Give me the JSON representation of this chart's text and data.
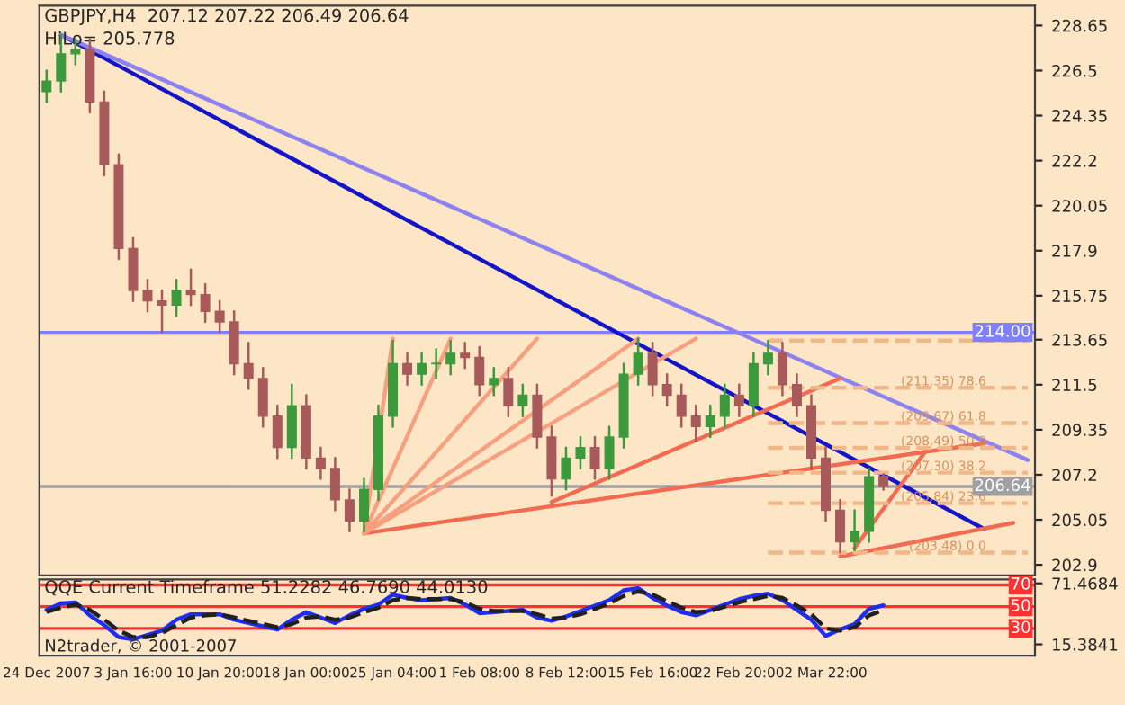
{
  "chart_data": [
    {
      "type": "candlestick",
      "title": "GBPJPY,H4  207.12 207.22 206.49 206.64",
      "subtitle": "HiLo= 205.778",
      "categories": [
        null,
        null,
        null,
        null,
        null,
        null,
        null,
        null,
        null,
        null,
        null,
        null,
        null,
        null,
        null,
        null,
        null,
        null,
        null,
        null,
        null,
        null,
        null,
        null,
        null,
        null,
        null,
        null,
        null,
        null,
        null,
        null,
        null,
        null,
        null,
        null,
        null,
        null,
        null,
        null,
        null,
        null,
        null,
        null,
        null,
        null,
        null,
        null,
        null,
        null,
        null,
        null,
        null,
        null,
        null,
        null,
        null,
        null,
        null,
        null,
        null,
        null,
        null,
        null,
        null,
        null,
        null,
        null,
        null
      ],
      "ohlc": [
        [
          225.5,
          226.5,
          225.0,
          226.0
        ],
        [
          226.0,
          228.2,
          225.5,
          227.3
        ],
        [
          227.3,
          228.0,
          226.8,
          227.5
        ],
        [
          227.5,
          228.0,
          224.5,
          225.0
        ],
        [
          225.0,
          225.5,
          221.5,
          222.0
        ],
        [
          222.0,
          222.5,
          217.5,
          218.0
        ],
        [
          218.0,
          218.5,
          215.5,
          216.0
        ],
        [
          216.0,
          216.5,
          215.0,
          215.5
        ],
        [
          215.5,
          216.0,
          214.0,
          215.3
        ],
        [
          215.3,
          216.5,
          214.8,
          216.0
        ],
        [
          216.0,
          217.0,
          215.3,
          215.8
        ],
        [
          215.8,
          216.3,
          214.5,
          215.0
        ],
        [
          215.0,
          215.5,
          214.0,
          214.5
        ],
        [
          214.5,
          215.0,
          212.0,
          212.5
        ],
        [
          212.5,
          213.5,
          211.3,
          211.8
        ],
        [
          211.8,
          212.3,
          209.5,
          210.0
        ],
        [
          210.0,
          210.5,
          208.0,
          208.5
        ],
        [
          208.5,
          211.5,
          208.0,
          210.5
        ],
        [
          210.5,
          211.0,
          207.5,
          208.0
        ],
        [
          208.0,
          208.5,
          207.0,
          207.5
        ],
        [
          207.5,
          208.0,
          205.5,
          206.0
        ],
        [
          206.0,
          206.5,
          204.5,
          205.0
        ],
        [
          205.0,
          207.0,
          204.5,
          206.5
        ],
        [
          206.5,
          210.5,
          206.0,
          210.0
        ],
        [
          210.0,
          213.6,
          209.5,
          212.5
        ],
        [
          212.5,
          213.0,
          211.5,
          212.0
        ],
        [
          212.0,
          213.0,
          211.5,
          212.5
        ],
        [
          212.5,
          213.2,
          211.8,
          212.5
        ],
        [
          212.5,
          213.6,
          212.0,
          213.0
        ],
        [
          213.0,
          213.5,
          212.3,
          212.8
        ],
        [
          212.8,
          213.3,
          211.0,
          211.5
        ],
        [
          211.5,
          212.3,
          211.0,
          211.8
        ],
        [
          211.8,
          212.3,
          210.0,
          210.5
        ],
        [
          210.5,
          211.5,
          210.0,
          211.0
        ],
        [
          211.0,
          211.5,
          208.5,
          209.0
        ],
        [
          209.0,
          209.5,
          206.2,
          207.0
        ],
        [
          207.0,
          208.5,
          206.5,
          208.0
        ],
        [
          208.0,
          209.0,
          207.5,
          208.5
        ],
        [
          208.5,
          209.0,
          207.0,
          207.5
        ],
        [
          207.5,
          209.5,
          207.0,
          209.0
        ],
        [
          209.0,
          212.5,
          208.5,
          212.0
        ],
        [
          212.0,
          213.7,
          211.5,
          213.0
        ],
        [
          213.0,
          213.5,
          211.0,
          211.5
        ],
        [
          211.5,
          212.0,
          210.5,
          211.0
        ],
        [
          211.0,
          211.5,
          209.5,
          210.0
        ],
        [
          210.0,
          210.5,
          208.8,
          209.5
        ],
        [
          209.5,
          210.5,
          209.0,
          210.0
        ],
        [
          210.0,
          211.5,
          209.5,
          211.0
        ],
        [
          211.0,
          211.5,
          210.0,
          210.5
        ],
        [
          210.5,
          213.0,
          210.0,
          212.5
        ],
        [
          212.5,
          213.6,
          212.0,
          213.0
        ],
        [
          213.0,
          213.5,
          211.0,
          211.5
        ],
        [
          211.5,
          212.0,
          210.0,
          210.5
        ],
        [
          210.5,
          211.0,
          207.5,
          208.0
        ],
        [
          208.0,
          208.5,
          205.0,
          205.5
        ],
        [
          205.5,
          206.0,
          203.5,
          204.0
        ],
        [
          204.0,
          205.5,
          203.6,
          204.5
        ],
        [
          204.5,
          207.5,
          204.0,
          207.1
        ],
        [
          207.12,
          207.22,
          206.49,
          206.64
        ],
        null,
        null,
        null,
        null,
        null,
        null,
        null,
        null,
        null,
        null
      ],
      "colors": [
        "#3c9a3c",
        "#3c9a3c",
        "#3c9a3c",
        "#a85a5a",
        "#a85a5a",
        "#a85a5a",
        "#a85a5a",
        "#a85a5a",
        "#a85a5a",
        "#3c9a3c",
        "#a85a5a",
        "#a85a5a",
        "#a85a5a",
        "#a85a5a",
        "#a85a5a",
        "#a85a5a",
        "#a85a5a",
        "#3c9a3c",
        "#a85a5a",
        "#a85a5a",
        "#a85a5a",
        "#a85a5a",
        "#3c9a3c",
        "#3c9a3c",
        "#3c9a3c",
        "#a85a5a",
        "#3c9a3c",
        "#3c9a3c",
        "#3c9a3c",
        "#a85a5a",
        "#a85a5a",
        "#3c9a3c",
        "#a85a5a",
        "#3c9a3c",
        "#a85a5a",
        "#a85a5a",
        "#3c9a3c",
        "#3c9a3c",
        "#a85a5a",
        "#3c9a3c",
        "#3c9a3c",
        "#3c9a3c",
        "#a85a5a",
        "#a85a5a",
        "#a85a5a",
        "#a85a5a",
        "#3c9a3c",
        "#3c9a3c",
        "#a85a5a",
        "#3c9a3c",
        "#3c9a3c",
        "#a85a5a",
        "#a85a5a",
        "#a85a5a",
        "#a85a5a",
        "#a85a5a",
        "#3c9a3c",
        "#3c9a3c",
        "#a85a5a",
        null,
        null,
        null,
        null,
        null,
        null,
        null,
        null,
        null,
        null
      ],
      "series": [
        {
          "type": "line",
          "color": "#1414c8",
          "values": [
            null,
            228.2,
            null,
            null,
            null,
            null,
            null,
            null,
            null,
            null,
            null,
            null,
            null,
            null,
            null,
            null,
            null,
            null,
            null,
            null,
            null,
            null,
            null,
            null,
            null,
            null,
            null,
            null,
            null,
            null,
            null,
            null,
            null,
            null,
            null,
            null,
            null,
            null,
            null,
            null,
            null,
            null,
            null,
            null,
            null,
            null,
            null,
            null,
            null,
            null,
            null,
            null,
            null,
            null,
            null,
            null,
            null,
            null,
            null,
            null,
            null,
            null,
            null,
            null,
            null,
            204.6,
            null,
            null,
            null
          ]
        },
        {
          "type": "line",
          "color": "#8c82f0",
          "values": [
            null,
            228.2,
            null,
            null,
            null,
            null,
            null,
            null,
            null,
            null,
            null,
            null,
            null,
            null,
            null,
            null,
            null,
            null,
            null,
            null,
            null,
            null,
            null,
            null,
            null,
            null,
            null,
            null,
            null,
            null,
            null,
            null,
            null,
            null,
            null,
            null,
            null,
            null,
            null,
            null,
            null,
            null,
            null,
            null,
            null,
            null,
            null,
            null,
            null,
            null,
            null,
            null,
            null,
            null,
            null,
            null,
            null,
            null,
            null,
            null,
            null,
            null,
            null,
            null,
            null,
            null,
            null,
            null,
            207.9
          ]
        },
        {
          "type": "line",
          "color": "#f26a50",
          "values": [
            null,
            null,
            null,
            null,
            null,
            null,
            null,
            null,
            null,
            null,
            null,
            null,
            null,
            null,
            null,
            null,
            null,
            null,
            null,
            null,
            null,
            null,
            204.4,
            null,
            null,
            null,
            null,
            null,
            null,
            null,
            null,
            null,
            null,
            null,
            null,
            null,
            null,
            null,
            null,
            null,
            null,
            null,
            null,
            null,
            null,
            null,
            null,
            null,
            null,
            null,
            null,
            null,
            null,
            null,
            null,
            null,
            null,
            null,
            null,
            null,
            null,
            null,
            null,
            null,
            null,
            208.7,
            null,
            null,
            null
          ]
        },
        {
          "type": "line",
          "color": "#f26a50",
          "values": [
            null,
            null,
            null,
            null,
            null,
            null,
            null,
            null,
            null,
            null,
            null,
            null,
            null,
            null,
            null,
            null,
            null,
            null,
            null,
            null,
            null,
            null,
            null,
            null,
            null,
            null,
            null,
            null,
            null,
            null,
            null,
            null,
            null,
            null,
            null,
            205.9,
            null,
            null,
            null,
            null,
            null,
            null,
            null,
            null,
            null,
            null,
            null,
            null,
            null,
            null,
            null,
            null,
            null,
            null,
            null,
            211.8,
            null,
            null,
            null,
            null,
            null,
            null,
            null,
            null,
            null,
            null,
            null,
            null,
            null
          ]
        },
        {
          "type": "line",
          "color": "#f26a50",
          "values": [
            null,
            null,
            null,
            null,
            null,
            null,
            null,
            null,
            null,
            null,
            null,
            null,
            null,
            null,
            null,
            null,
            null,
            null,
            null,
            null,
            null,
            null,
            null,
            null,
            null,
            null,
            null,
            null,
            null,
            null,
            null,
            null,
            null,
            null,
            null,
            null,
            null,
            null,
            null,
            null,
            null,
            null,
            null,
            null,
            null,
            null,
            null,
            null,
            null,
            null,
            null,
            null,
            null,
            null,
            null,
            203.3,
            null,
            null,
            null,
            null,
            null,
            null,
            null,
            null,
            null,
            null,
            null,
            204.9,
            null
          ]
        },
        {
          "type": "line",
          "color": "#f26a50",
          "values": [
            null,
            null,
            null,
            null,
            null,
            null,
            null,
            null,
            null,
            null,
            null,
            null,
            null,
            null,
            null,
            null,
            null,
            null,
            null,
            null,
            null,
            null,
            null,
            null,
            null,
            null,
            null,
            null,
            null,
            null,
            null,
            null,
            null,
            null,
            null,
            null,
            null,
            null,
            null,
            null,
            null,
            null,
            null,
            null,
            null,
            null,
            null,
            null,
            null,
            null,
            null,
            null,
            null,
            null,
            null,
            null,
            203.7,
            null,
            null,
            null,
            null,
            208.4,
            null,
            null,
            null,
            null,
            null,
            null,
            null
          ]
        },
        {
          "type": "line",
          "color": "#f7a080",
          "values": [
            null,
            null,
            null,
            null,
            null,
            null,
            null,
            null,
            null,
            null,
            null,
            null,
            null,
            null,
            null,
            null,
            null,
            null,
            null,
            null,
            null,
            null,
            204.4,
            null,
            213.7,
            null,
            null,
            null,
            null,
            null,
            null,
            null,
            null,
            null,
            null,
            null,
            null,
            null,
            null,
            null,
            null,
            null,
            null,
            null,
            null,
            null,
            null,
            null,
            null,
            null,
            null,
            null,
            null,
            null,
            null,
            null,
            null,
            null,
            null,
            null,
            null,
            null,
            null,
            null,
            null,
            null,
            null,
            null,
            null
          ]
        },
        {
          "type": "line",
          "color": "#f7a080",
          "values": [
            null,
            null,
            null,
            null,
            null,
            null,
            null,
            null,
            null,
            null,
            null,
            null,
            null,
            null,
            null,
            null,
            null,
            null,
            null,
            null,
            null,
            null,
            204.4,
            null,
            null,
            null,
            null,
            null,
            213.7,
            null,
            null,
            null,
            null,
            null,
            null,
            null,
            null,
            null,
            null,
            null,
            null,
            null,
            null,
            null,
            null,
            null,
            null,
            null,
            null,
            null,
            null,
            null,
            null,
            null,
            null,
            null,
            null,
            null,
            null,
            null,
            null,
            null,
            null,
            null,
            null,
            null,
            null,
            null,
            null
          ]
        },
        {
          "type": "line",
          "color": "#f7a080",
          "values": [
            null,
            null,
            null,
            null,
            null,
            null,
            null,
            null,
            null,
            null,
            null,
            null,
            null,
            null,
            null,
            null,
            null,
            null,
            null,
            null,
            null,
            null,
            204.4,
            null,
            null,
            null,
            null,
            null,
            null,
            null,
            null,
            null,
            null,
            null,
            213.7,
            null,
            null,
            null,
            null,
            null,
            null,
            null,
            null,
            null,
            null,
            null,
            null,
            null,
            null,
            null,
            null,
            null,
            null,
            null,
            null,
            null,
            null,
            null,
            null,
            null,
            null,
            null,
            null,
            null,
            null,
            null,
            null,
            null,
            null
          ]
        },
        {
          "type": "line",
          "color": "#f7a080",
          "values": [
            null,
            null,
            null,
            null,
            null,
            null,
            null,
            null,
            null,
            null,
            null,
            null,
            null,
            null,
            null,
            null,
            null,
            null,
            null,
            null,
            null,
            null,
            204.4,
            null,
            null,
            null,
            null,
            null,
            null,
            null,
            null,
            null,
            null,
            null,
            null,
            null,
            null,
            null,
            null,
            null,
            null,
            213.7,
            null,
            null,
            null,
            null,
            null,
            null,
            null,
            null,
            null,
            null,
            null,
            null,
            null,
            null,
            null,
            null,
            null,
            null,
            null,
            null,
            null,
            null,
            null,
            null,
            null,
            null,
            null
          ]
        },
        {
          "type": "line",
          "color": "#f7a080",
          "values": [
            null,
            null,
            null,
            null,
            null,
            null,
            null,
            null,
            null,
            null,
            null,
            null,
            null,
            null,
            null,
            null,
            null,
            null,
            null,
            null,
            null,
            null,
            204.4,
            null,
            null,
            null,
            null,
            null,
            null,
            null,
            null,
            null,
            null,
            null,
            null,
            null,
            null,
            null,
            null,
            null,
            null,
            null,
            null,
            null,
            null,
            213.7,
            null,
            null,
            null,
            null,
            null,
            null,
            null,
            null,
            null,
            null,
            null,
            null,
            null,
            null,
            null,
            null,
            null,
            null,
            null,
            null,
            null,
            null,
            null
          ]
        },
        {
          "type": "line",
          "color": "#f0b888",
          "line_style": "dashed",
          "values": [
            null,
            null,
            null,
            null,
            null,
            null,
            null,
            null,
            null,
            null,
            null,
            null,
            null,
            null,
            null,
            null,
            null,
            null,
            null,
            null,
            null,
            null,
            null,
            null,
            null,
            null,
            null,
            null,
            null,
            null,
            null,
            null,
            null,
            null,
            null,
            null,
            null,
            null,
            null,
            null,
            null,
            null,
            null,
            null,
            null,
            null,
            null,
            null,
            null,
            null,
            213.61,
            null,
            null,
            null,
            null,
            null,
            null,
            null,
            null,
            null,
            null,
            null,
            null,
            null,
            null,
            null,
            null,
            null,
            213.61
          ]
        },
        {
          "type": "line",
          "color": "#f0b888",
          "line_style": "dashed",
          "values": [
            null,
            null,
            null,
            null,
            null,
            null,
            null,
            null,
            null,
            null,
            null,
            null,
            null,
            null,
            null,
            null,
            null,
            null,
            null,
            null,
            null,
            null,
            null,
            null,
            null,
            null,
            null,
            null,
            null,
            null,
            null,
            null,
            null,
            null,
            null,
            null,
            null,
            null,
            null,
            null,
            null,
            null,
            null,
            null,
            null,
            null,
            null,
            null,
            null,
            null,
            211.35,
            null,
            null,
            null,
            null,
            null,
            null,
            null,
            null,
            null,
            null,
            null,
            null,
            null,
            null,
            null,
            null,
            null,
            211.35
          ]
        },
        {
          "type": "line",
          "color": "#f0b888",
          "line_style": "dashed",
          "values": [
            null,
            null,
            null,
            null,
            null,
            null,
            null,
            null,
            null,
            null,
            null,
            null,
            null,
            null,
            null,
            null,
            null,
            null,
            null,
            null,
            null,
            null,
            null,
            null,
            null,
            null,
            null,
            null,
            null,
            null,
            null,
            null,
            null,
            null,
            null,
            null,
            null,
            null,
            null,
            null,
            null,
            null,
            null,
            null,
            null,
            null,
            null,
            null,
            null,
            null,
            209.67,
            null,
            null,
            null,
            null,
            null,
            null,
            null,
            null,
            null,
            null,
            null,
            null,
            null,
            null,
            null,
            null,
            null,
            209.67
          ]
        },
        {
          "type": "line",
          "color": "#f0b888",
          "line_style": "dashed",
          "values": [
            null,
            null,
            null,
            null,
            null,
            null,
            null,
            null,
            null,
            null,
            null,
            null,
            null,
            null,
            null,
            null,
            null,
            null,
            null,
            null,
            null,
            null,
            null,
            null,
            null,
            null,
            null,
            null,
            null,
            null,
            null,
            null,
            null,
            null,
            null,
            null,
            null,
            null,
            null,
            null,
            null,
            null,
            null,
            null,
            null,
            null,
            null,
            null,
            null,
            null,
            208.49,
            null,
            null,
            null,
            null,
            null,
            null,
            null,
            null,
            null,
            null,
            null,
            null,
            null,
            null,
            null,
            null,
            null,
            208.49
          ]
        },
        {
          "type": "line",
          "color": "#f0b888",
          "line_style": "dashed",
          "values": [
            null,
            null,
            null,
            null,
            null,
            null,
            null,
            null,
            null,
            null,
            null,
            null,
            null,
            null,
            null,
            null,
            null,
            null,
            null,
            null,
            null,
            null,
            null,
            null,
            null,
            null,
            null,
            null,
            null,
            null,
            null,
            null,
            null,
            null,
            null,
            null,
            null,
            null,
            null,
            null,
            null,
            null,
            null,
            null,
            null,
            null,
            null,
            null,
            null,
            null,
            207.3,
            null,
            null,
            null,
            null,
            null,
            null,
            null,
            null,
            null,
            null,
            null,
            null,
            null,
            null,
            null,
            null,
            null,
            207.3
          ]
        },
        {
          "type": "line",
          "color": "#f0b888",
          "line_style": "dashed",
          "values": [
            null,
            null,
            null,
            null,
            null,
            null,
            null,
            null,
            null,
            null,
            null,
            null,
            null,
            null,
            null,
            null,
            null,
            null,
            null,
            null,
            null,
            null,
            null,
            null,
            null,
            null,
            null,
            null,
            null,
            null,
            null,
            null,
            null,
            null,
            null,
            null,
            null,
            null,
            null,
            null,
            null,
            null,
            null,
            null,
            null,
            null,
            null,
            null,
            null,
            null,
            205.84,
            null,
            null,
            null,
            null,
            null,
            null,
            null,
            null,
            null,
            null,
            null,
            null,
            null,
            null,
            null,
            null,
            null,
            205.84
          ]
        },
        {
          "type": "line",
          "color": "#f0b888",
          "line_style": "dashed",
          "values": [
            null,
            null,
            null,
            null,
            null,
            null,
            null,
            null,
            null,
            null,
            null,
            null,
            null,
            null,
            null,
            null,
            null,
            null,
            null,
            null,
            null,
            null,
            null,
            null,
            null,
            null,
            null,
            null,
            null,
            null,
            null,
            null,
            null,
            null,
            null,
            null,
            null,
            null,
            null,
            null,
            null,
            null,
            null,
            null,
            null,
            null,
            null,
            null,
            null,
            null,
            203.48,
            null,
            null,
            null,
            null,
            null,
            null,
            null,
            null,
            null,
            null,
            null,
            null,
            null,
            null,
            null,
            null,
            null,
            203.48
          ]
        }
      ],
      "annotations": [
        {
          "text": "(211.35) 78.6",
          "y": 211.35
        },
        {
          "text": "(209.67) 61.8",
          "y": 209.67
        },
        {
          "text": "(208.49) 50.0",
          "y": 208.49
        },
        {
          "text": "(207.30) 38.2",
          "y": 207.3
        },
        {
          "text": "(205.84) 23.6",
          "y": 205.84
        },
        {
          "text": "(203.48) 0.0",
          "y": 203.48
        }
      ],
      "ref_lines": [
        {
          "axis": "y",
          "value": 214.0,
          "label": "214.00",
          "color": "#8080ff"
        },
        {
          "axis": "y",
          "value": 206.64,
          "label": "206.64",
          "color": "#a0a0a0"
        }
      ],
      "ylim": [
        202.4,
        229.6
      ],
      "yticks": [
        228.65,
        226.5,
        224.35,
        222.2,
        220.05,
        217.9,
        215.75,
        213.65,
        211.5,
        209.35,
        207.2,
        205.05,
        202.9
      ],
      "tick_labels": "y",
      "grid": false
    },
    {
      "type": "line",
      "title": "QQE Current Timeframe 51.2282 46.7690 44.0130",
      "categories": [
        "24 Dec 2007",
        null,
        null,
        null,
        null,
        null,
        "3 Jan 16:00",
        null,
        null,
        null,
        null,
        null,
        "10 Jan 20:00",
        null,
        null,
        null,
        null,
        null,
        "18 Jan 00:00",
        null,
        null,
        null,
        null,
        null,
        "25 Jan 04:00",
        null,
        null,
        null,
        null,
        null,
        "1 Feb 08:00",
        null,
        null,
        null,
        null,
        null,
        "8 Feb 12:00",
        null,
        null,
        null,
        null,
        null,
        "15 Feb 16:00",
        null,
        null,
        null,
        null,
        null,
        "22 Feb 20:00",
        null,
        null,
        null,
        null,
        null,
        "2 Mar 22:00",
        null,
        null,
        null,
        null,
        null,
        null,
        null,
        null,
        null,
        null,
        null,
        null,
        null,
        null
      ],
      "series": [
        {
          "color": "#1e2ef0",
          "values": [
            47,
            53,
            54,
            42,
            33,
            22,
            20,
            24,
            28,
            38,
            43,
            43,
            43,
            38,
            35,
            32,
            29,
            38,
            45,
            40,
            35,
            42,
            48,
            52,
            61,
            58,
            56,
            57,
            58,
            52,
            44,
            45,
            46,
            47,
            40,
            37,
            41,
            46,
            51,
            56,
            65,
            67,
            58,
            51,
            45,
            42,
            47,
            52,
            57,
            60,
            62,
            56,
            47,
            38,
            23,
            29,
            34,
            48,
            51.2,
            null,
            null,
            null,
            null,
            null,
            null,
            null,
            null,
            null,
            null
          ]
        },
        {
          "color": "#202020",
          "line_style": "dashed",
          "values": [
            45,
            49,
            52,
            47,
            38,
            28,
            22,
            22,
            26,
            33,
            40,
            42,
            43,
            40,
            37,
            34,
            31,
            34,
            40,
            41,
            38,
            40,
            45,
            49,
            56,
            58,
            57,
            57,
            57,
            54,
            48,
            46,
            46,
            46,
            43,
            39,
            40,
            43,
            48,
            53,
            60,
            64,
            61,
            55,
            49,
            45,
            46,
            50,
            54,
            57,
            60,
            58,
            51,
            43,
            30,
            28,
            31,
            42,
            46.8,
            null,
            null,
            null,
            null,
            null,
            null,
            null,
            null,
            null,
            null
          ]
        }
      ],
      "ref_lines": [
        {
          "axis": "y",
          "value": 70,
          "label": "70",
          "color": "#ff3030"
        },
        {
          "axis": "y",
          "value": 50,
          "label": "50",
          "color": "#ff3030"
        },
        {
          "axis": "y",
          "value": 30,
          "label": "30",
          "color": "#ff3030"
        }
      ],
      "annotations": [
        "N2trader, © 2001-2007"
      ],
      "ylim": [
        5,
        75
      ],
      "yticks": [
        71.4684,
        15.3841
      ],
      "grid": false
    }
  ]
}
